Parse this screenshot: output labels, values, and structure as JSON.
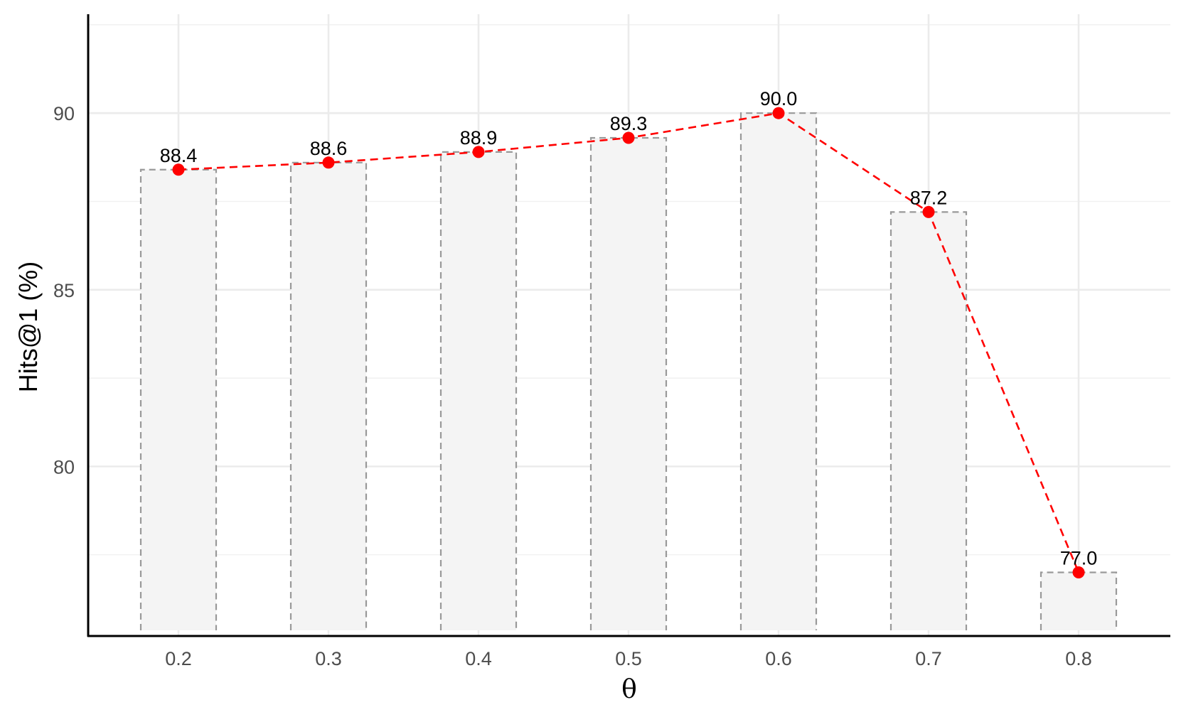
{
  "chart_data": {
    "type": "bar",
    "categories": [
      "0.2",
      "0.3",
      "0.4",
      "0.5",
      "0.6",
      "0.7",
      "0.8"
    ],
    "values": [
      88.4,
      88.6,
      88.9,
      89.3,
      90.0,
      87.2,
      77.0
    ],
    "data_labels": [
      "88.4",
      "88.6",
      "88.9",
      "89.3",
      "90.0",
      "87.2",
      "77.0"
    ],
    "overlay_line": {
      "style": "dashed",
      "color": "#ff0000",
      "marker": "circle"
    },
    "xlabel": "θ",
    "ylabel": "Hits@1 (%)",
    "ylim": [
      75.2,
      92.8
    ],
    "y_ticks": [
      80,
      85,
      90
    ],
    "y_tick_labels": [
      "80",
      "85",
      "90"
    ],
    "grid": true,
    "bar_fill": "#f4f4f4",
    "bar_stroke": "#999999"
  }
}
